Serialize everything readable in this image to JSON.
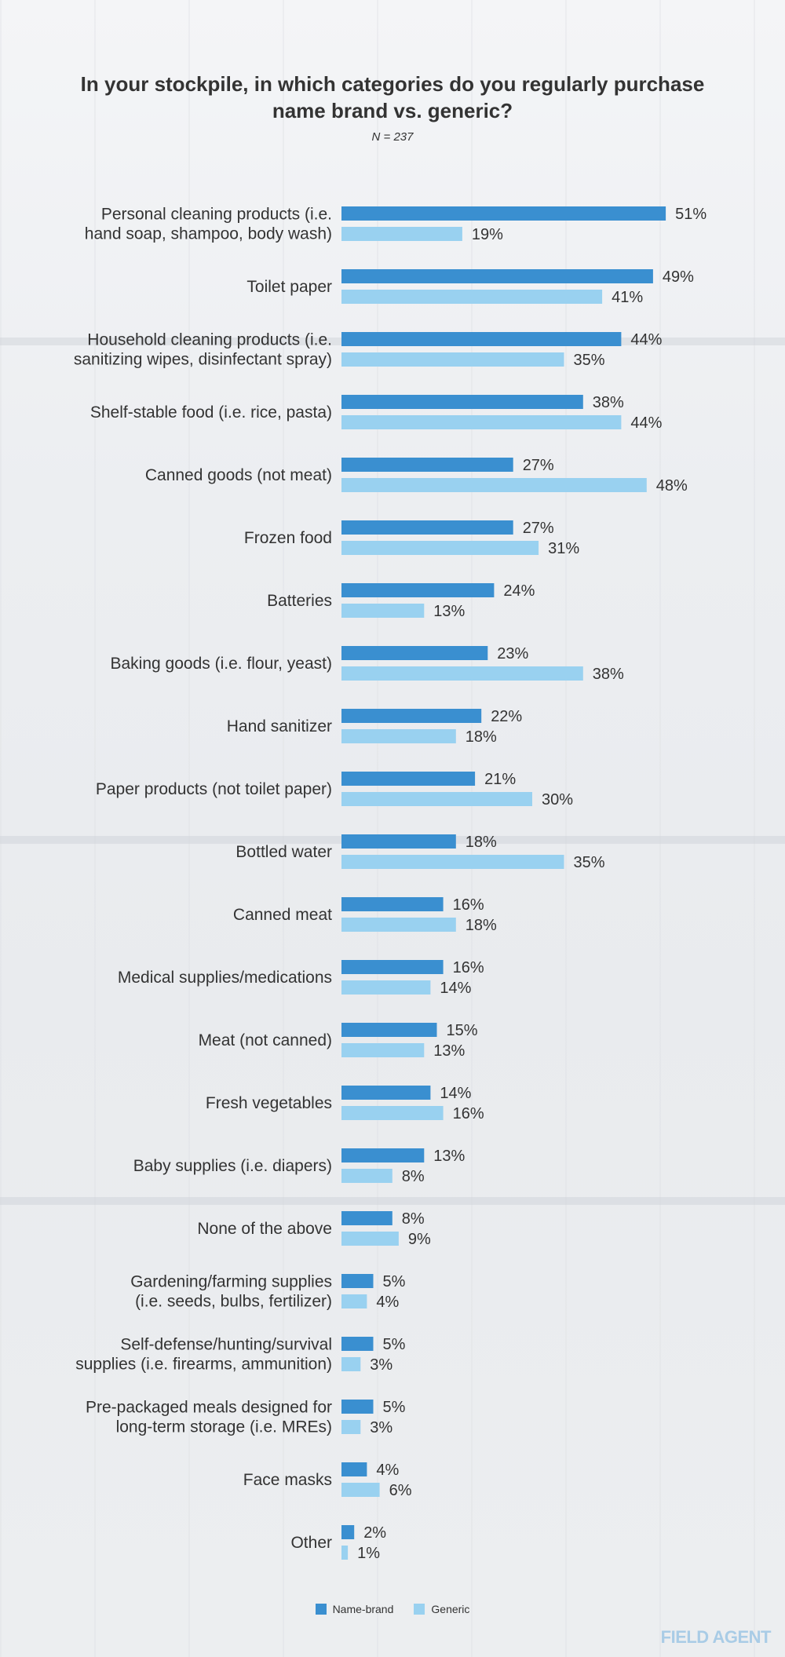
{
  "chart_data": {
    "type": "bar",
    "orientation": "horizontal",
    "title": "In your stockpile, in which categories do you regularly purchase name brand vs. generic?",
    "subtitle": "N = 237",
    "categories": [
      [
        "Personal cleaning products (i.e.",
        "hand soap, shampoo, body wash)"
      ],
      [
        "Toilet paper"
      ],
      [
        "Household cleaning products (i.e.",
        "sanitizing wipes, disinfectant spray)"
      ],
      [
        "Shelf-stable food (i.e. rice, pasta)"
      ],
      [
        "Canned goods (not meat)"
      ],
      [
        "Frozen food"
      ],
      [
        "Batteries"
      ],
      [
        "Baking goods (i.e. flour, yeast)"
      ],
      [
        "Hand sanitizer"
      ],
      [
        "Paper products (not toilet paper)"
      ],
      [
        "Bottled water"
      ],
      [
        "Canned meat"
      ],
      [
        "Medical supplies/medications"
      ],
      [
        "Meat (not canned)"
      ],
      [
        "Fresh vegetables"
      ],
      [
        "Baby supplies (i.e. diapers)"
      ],
      [
        "None of the above"
      ],
      [
        "Gardening/farming supplies",
        "(i.e. seeds, bulbs, fertilizer)"
      ],
      [
        "Self-defense/hunting/survival",
        "supplies (i.e. firearms, ammunition)"
      ],
      [
        "Pre-packaged meals designed for",
        "long-term storage (i.e. MREs)"
      ],
      [
        "Face masks"
      ],
      [
        "Other"
      ]
    ],
    "series": [
      {
        "name": "Name-brand",
        "color": "#3a8fd0",
        "values": [
          51,
          49,
          44,
          38,
          27,
          27,
          24,
          23,
          22,
          21,
          18,
          16,
          16,
          15,
          14,
          13,
          8,
          5,
          5,
          5,
          4,
          2
        ]
      },
      {
        "name": "Generic",
        "color": "#99d1f0",
        "values": [
          19,
          41,
          35,
          44,
          48,
          31,
          13,
          38,
          18,
          30,
          35,
          18,
          14,
          13,
          16,
          8,
          9,
          4,
          3,
          3,
          6,
          1
        ]
      }
    ],
    "value_suffix": "%",
    "xlim": [
      0,
      100
    ],
    "grid": false,
    "legend_position": "bottom-center"
  },
  "brand": "FIELD AGENT"
}
